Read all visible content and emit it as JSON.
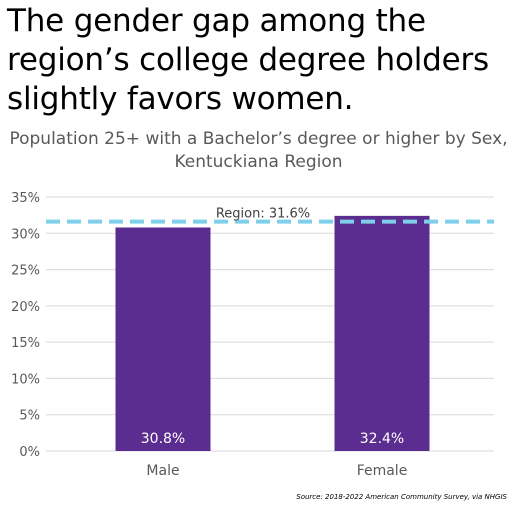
{
  "headline": "The gender gap among the region’s college degree holders slightly favors women.",
  "source": "Source: 2018-2022  American Community Survey, via NHGIS",
  "chart_data": {
    "type": "bar",
    "title": "Population 25+ with a Bachelor’s degree or higher by Sex, Kentuckiana Region",
    "categories": [
      "Male",
      "Female"
    ],
    "values": [
      30.8,
      32.4
    ],
    "data_labels": [
      "30.8%",
      "32.4%"
    ],
    "yticks": [
      "0%",
      "5%",
      "10%",
      "15%",
      "20%",
      "25%",
      "30%",
      "35%"
    ],
    "ylim": [
      0,
      35
    ],
    "grid": true,
    "legend": "none",
    "reference_line": {
      "label": "Region: 31.6%",
      "value": 31.6,
      "style": "dashed"
    },
    "colors": {
      "bar": "#5c2d91",
      "reference": "#7ecfea",
      "grid": "#d9d9d9"
    }
  }
}
